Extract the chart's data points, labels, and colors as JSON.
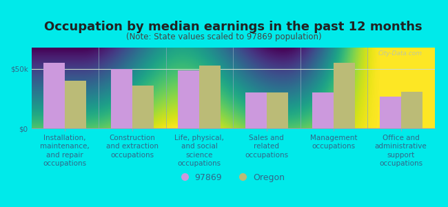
{
  "title": "Occupation by median earnings in the past 12 months",
  "subtitle": "(Note: State values scaled to 97869 population)",
  "categories": [
    "Installation,\nmaintenance,\nand repair\noccupations",
    "Construction\nand extraction\noccupations",
    "Life, physical,\nand social\nscience\noccupations",
    "Sales and\nrelated\noccupations",
    "Management\noccupations",
    "Office and\nadministrative\nsupport\noccupations"
  ],
  "values_97869": [
    55000,
    50000,
    49000,
    30000,
    30000,
    27000
  ],
  "values_oregon": [
    40000,
    36000,
    53000,
    30000,
    55000,
    31000
  ],
  "color_97869": "#cc99dd",
  "color_oregon": "#bbbb77",
  "background_outer": "#00eaea",
  "background_plot_gradient_top": "#c8e8c8",
  "background_plot_gradient_bottom": "#f0fff0",
  "title_color": "#222222",
  "subtitle_color": "#444444",
  "tick_label_color": "#336688",
  "ytick_label": "$50k",
  "ytick_value": 50000,
  "y_max": 68000,
  "legend_label_1": "97869",
  "legend_label_2": "Oregon",
  "watermark": "City-Data.com",
  "title_fontsize": 13,
  "subtitle_fontsize": 8.5,
  "tick_label_fontsize": 7.5,
  "legend_fontsize": 9,
  "separator_color": "#88aabb",
  "hline_color": "#ccddcc",
  "spine_color": "#88aabb"
}
